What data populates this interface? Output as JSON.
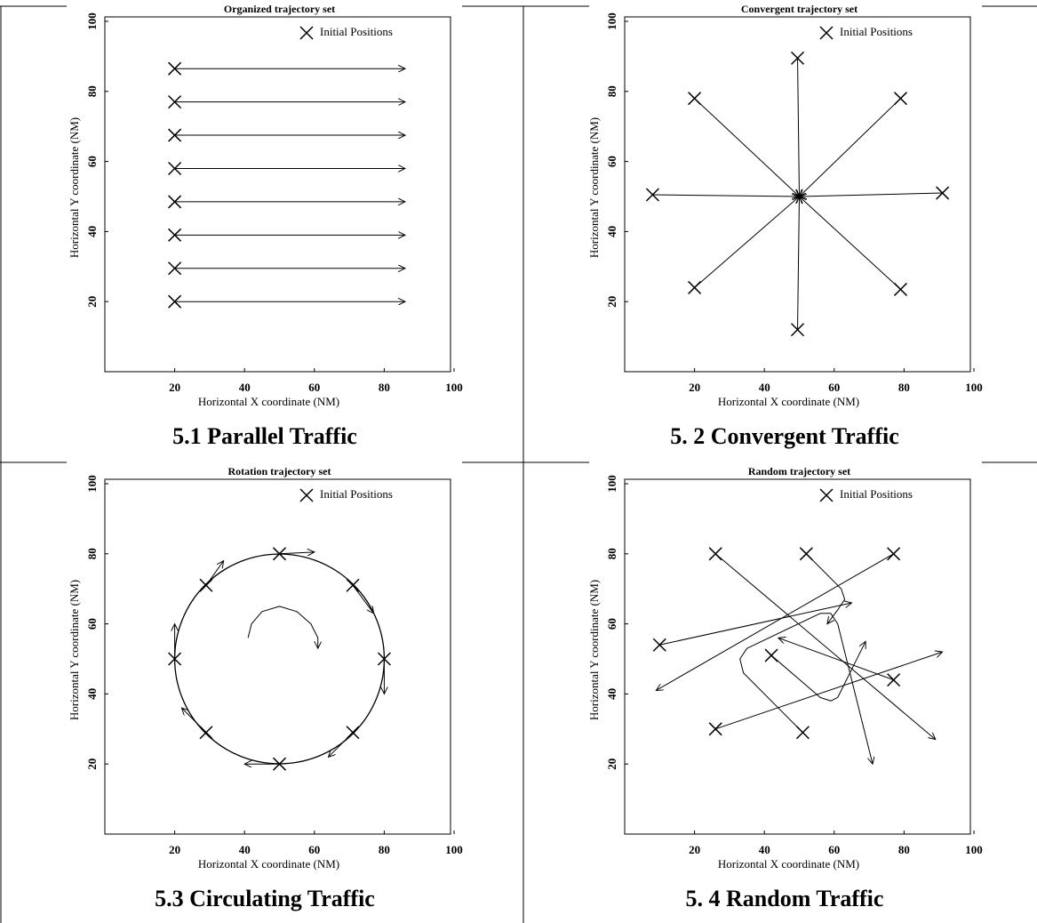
{
  "chart_data": [
    {
      "type": "trajectory",
      "title": "Organized trajectory set",
      "caption": "5.1 Parallel Traffic",
      "xlabel": "Horizontal X coordinate (NM)",
      "ylabel": "Horizontal Y coordinate (NM)",
      "xlim": [
        0,
        100
      ],
      "ylim": [
        0,
        100
      ],
      "xticks": [
        20,
        40,
        60,
        80,
        100
      ],
      "yticks": [
        20,
        40,
        60,
        80,
        100
      ],
      "series": [
        {
          "name": "Initial Positions",
          "x": [
            20,
            20,
            20,
            20,
            20,
            20,
            20,
            20
          ],
          "y": [
            86.5,
            77,
            67.5,
            58,
            48.5,
            39,
            29.5,
            20
          ]
        }
      ],
      "paths": [
        {
          "x": [
            20,
            86
          ],
          "y": [
            86.5,
            86.5
          ]
        },
        {
          "x": [
            20,
            86
          ],
          "y": [
            77,
            77
          ]
        },
        {
          "x": [
            20,
            86
          ],
          "y": [
            67.5,
            67.5
          ]
        },
        {
          "x": [
            20,
            86
          ],
          "y": [
            58,
            58
          ]
        },
        {
          "x": [
            20,
            86
          ],
          "y": [
            48.5,
            48.5
          ]
        },
        {
          "x": [
            20,
            86
          ],
          "y": [
            39,
            39
          ]
        },
        {
          "x": [
            20,
            86
          ],
          "y": [
            29.5,
            29.5
          ]
        },
        {
          "x": [
            20,
            86
          ],
          "y": [
            20,
            20
          ]
        }
      ]
    },
    {
      "type": "trajectory",
      "title": "Convergent trajectory set",
      "caption": "5. 2 Convergent Traffic",
      "xlabel": "Horizontal X coordinate (NM)",
      "ylabel": "Horizontal Y coordinate (NM)",
      "xlim": [
        0,
        100
      ],
      "ylim": [
        0,
        100
      ],
      "xticks": [
        20,
        40,
        60,
        80,
        100
      ],
      "yticks": [
        20,
        40,
        60,
        80,
        100
      ],
      "series": [
        {
          "name": "Initial Positions",
          "x": [
            49.5,
            20,
            79,
            8,
            91,
            20,
            79,
            49.5
          ],
          "y": [
            89.5,
            78,
            78,
            50.5,
            51,
            24,
            23.5,
            12
          ]
        }
      ],
      "paths": [
        {
          "x": [
            49.5,
            50
          ],
          "y": [
            89.5,
            50
          ]
        },
        {
          "x": [
            20,
            50
          ],
          "y": [
            78,
            50
          ]
        },
        {
          "x": [
            79,
            50
          ],
          "y": [
            78,
            50
          ]
        },
        {
          "x": [
            8,
            50
          ],
          "y": [
            50.5,
            50
          ]
        },
        {
          "x": [
            91,
            50
          ],
          "y": [
            51,
            50
          ]
        },
        {
          "x": [
            20,
            50
          ],
          "y": [
            24,
            50
          ]
        },
        {
          "x": [
            79,
            50
          ],
          "y": [
            23.5,
            50
          ]
        },
        {
          "x": [
            49.5,
            50
          ],
          "y": [
            12,
            50
          ]
        }
      ]
    },
    {
      "type": "trajectory",
      "title": "Rotation trajectory set",
      "caption": "5.3 Circulating Traffic",
      "xlabel": "Horizontal X coordinate (NM)",
      "ylabel": "Horizontal Y coordinate (NM)",
      "xlim": [
        0,
        100
      ],
      "ylim": [
        0,
        100
      ],
      "xticks": [
        20,
        40,
        60,
        80,
        100
      ],
      "yticks": [
        20,
        40,
        60,
        80,
        100
      ],
      "circle": {
        "cx": 50,
        "cy": 50,
        "r": 30
      },
      "series": [
        {
          "name": "Initial Positions",
          "x": [
            50,
            71,
            80,
            71,
            50,
            29,
            20,
            29
          ],
          "y": [
            80,
            71,
            50,
            29,
            20,
            29,
            50,
            71
          ]
        }
      ],
      "paths": [
        {
          "x": [
            50,
            60
          ],
          "y": [
            80,
            80.5
          ]
        },
        {
          "x": [
            71,
            77
          ],
          "y": [
            71,
            63
          ]
        },
        {
          "x": [
            80,
            80
          ],
          "y": [
            50,
            40
          ]
        },
        {
          "x": [
            71,
            64
          ],
          "y": [
            29,
            22
          ]
        },
        {
          "x": [
            50,
            40
          ],
          "y": [
            20,
            20
          ]
        },
        {
          "x": [
            29,
            22
          ],
          "y": [
            29,
            36
          ]
        },
        {
          "x": [
            20,
            20
          ],
          "y": [
            50,
            60
          ]
        },
        {
          "x": [
            29,
            34
          ],
          "y": [
            71,
            78
          ]
        },
        {
          "x": [
            41,
            42,
            45,
            50,
            55,
            59,
            61,
            61
          ],
          "y": [
            56,
            60,
            63.5,
            65,
            63.5,
            60,
            56,
            53
          ]
        }
      ]
    },
    {
      "type": "trajectory",
      "title": "Random trajectory set",
      "caption": "5. 4  Random Traffic",
      "xlabel": "Horizontal X coordinate (NM)",
      "ylabel": "Horizontal Y coordinate (NM)",
      "xlim": [
        0,
        100
      ],
      "ylim": [
        0,
        100
      ],
      "xticks": [
        20,
        40,
        60,
        80,
        100
      ],
      "yticks": [
        20,
        40,
        60,
        80,
        100
      ],
      "series": [
        {
          "name": "Initial Positions",
          "x": [
            26,
            52,
            77,
            10,
            42,
            77,
            26,
            51
          ],
          "y": [
            80,
            80,
            80,
            54,
            51,
            44,
            30,
            29
          ]
        }
      ],
      "paths": [
        {
          "x": [
            26,
            89
          ],
          "y": [
            80,
            27
          ]
        },
        {
          "x": [
            52,
            62,
            63,
            61,
            58
          ],
          "y": [
            80,
            70,
            67,
            64,
            60
          ]
        },
        {
          "x": [
            77,
            9
          ],
          "y": [
            80,
            41
          ]
        },
        {
          "x": [
            10,
            65
          ],
          "y": [
            54,
            66
          ]
        },
        {
          "x": [
            42,
            56,
            59,
            61,
            64,
            69
          ],
          "y": [
            51,
            39,
            38,
            39,
            45,
            55
          ]
        },
        {
          "x": [
            77,
            44
          ],
          "y": [
            44,
            56
          ]
        },
        {
          "x": [
            26,
            91
          ],
          "y": [
            30,
            52
          ]
        },
        {
          "x": [
            51,
            34,
            33,
            35,
            56,
            59,
            61,
            71
          ],
          "y": [
            29,
            46,
            50,
            53,
            63,
            63,
            60,
            20
          ]
        }
      ]
    }
  ]
}
